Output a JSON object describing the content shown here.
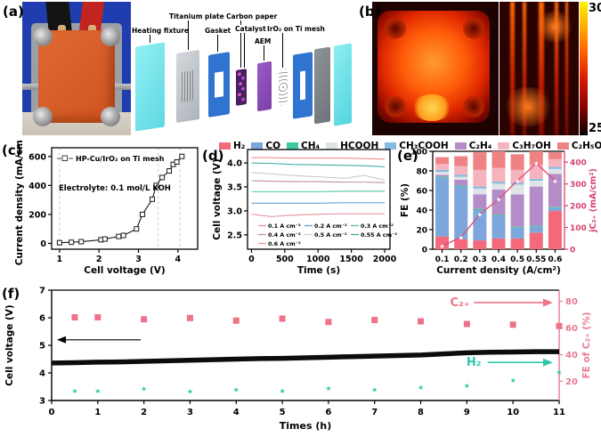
{
  "panels": {
    "a": {
      "label": "(a)",
      "components": [
        "Heating fixture",
        "Titanium plate",
        "Gasket",
        "Carbon paper",
        "Catalyst",
        "AEM",
        "IrO₂ on Ti mesh"
      ]
    },
    "b": {
      "label": "(b)",
      "colorbar_max": "30",
      "colorbar_min": "25"
    },
    "c": {
      "label": "(c)"
    },
    "d": {
      "label": "(d)"
    },
    "e": {
      "label": "(e)"
    },
    "f": {
      "label": "(f)"
    }
  },
  "chart_data": [
    {
      "panel": "c",
      "type": "scatter",
      "series_name": "HP-Cu/IrO₂ on Ti mesh",
      "annotation": "Electrolyte: 0.1 mol/L KOH",
      "xlabel": "Cell voltage (V)",
      "ylabel": "Current density (mA/cm²)",
      "xlim": [
        0.8,
        4.5
      ],
      "ylim": [
        -40,
        660
      ],
      "xticks": [
        1,
        2,
        3,
        4
      ],
      "yticks": [
        0,
        200,
        400,
        600
      ],
      "dashed_x": [
        1,
        3.5,
        4.05
      ],
      "x": [
        1.0,
        1.3,
        1.55,
        2.05,
        2.15,
        2.5,
        2.62,
        2.95,
        3.1,
        3.35,
        3.45,
        3.6,
        3.78,
        3.88,
        3.97,
        4.1
      ],
      "y": [
        5,
        8,
        12,
        25,
        30,
        48,
        55,
        100,
        200,
        305,
        400,
        455,
        500,
        545,
        562,
        600
      ]
    },
    {
      "panel": "d",
      "type": "line",
      "xlabel": "Time (s)",
      "ylabel": "Cell voltage (V)",
      "xlim": [
        -60,
        2080
      ],
      "ylim": [
        2.2,
        4.28
      ],
      "xticks": [
        0,
        500,
        1000,
        1500,
        2000
      ],
      "yticks": [
        2.5,
        3.0,
        3.5,
        4.0
      ],
      "x": [
        0,
        300,
        600,
        1000,
        1400,
        1700,
        2000
      ],
      "series": [
        {
          "name": "0.1 A cm⁻²",
          "color": "#e8929e",
          "y": [
            2.93,
            2.88,
            2.91,
            2.93,
            2.94,
            2.94,
            2.94
          ]
        },
        {
          "name": "0.2 A cm⁻²",
          "color": "#6b9fc8",
          "y": [
            3.16,
            3.16,
            3.16,
            3.16,
            3.17,
            3.17,
            3.17
          ]
        },
        {
          "name": "0.3 A cm⁻²",
          "color": "#52c3ab",
          "y": [
            3.4,
            3.4,
            3.4,
            3.4,
            3.41,
            3.41,
            3.41
          ]
        },
        {
          "name": "0.4 A cm⁻²",
          "color": "#c38d9e",
          "y": [
            3.63,
            3.62,
            3.61,
            3.61,
            3.6,
            3.6,
            3.59
          ]
        },
        {
          "name": "0.5 A cm⁻²",
          "color": "#c9c9d6",
          "y": [
            3.8,
            3.77,
            3.74,
            3.71,
            3.68,
            3.74,
            3.64
          ]
        },
        {
          "name": "0.55 A cm⁻²",
          "color": "#3fae9f",
          "y": [
            4.0,
            3.99,
            3.97,
            3.96,
            3.95,
            3.94,
            3.92
          ]
        },
        {
          "name": "0.6 A cm⁻²",
          "color": "#ef8e8e",
          "y": [
            4.11,
            4.11,
            4.1,
            4.1,
            4.1,
            4.09,
            4.08
          ]
        }
      ]
    },
    {
      "panel": "e",
      "type": "stacked-bar-line",
      "xlabel": "Current density (A/cm²)",
      "ylabel": "FE (%)",
      "y2label": "jC₂₊ (mA/cm²)",
      "categories": [
        "0.1",
        "0.2",
        "0.3",
        "0.4",
        "0.5",
        "0.55",
        "0.6"
      ],
      "ylim": [
        0,
        100
      ],
      "yticks": [
        0,
        20,
        40,
        60,
        80,
        100
      ],
      "y2lim": [
        0,
        450
      ],
      "y2ticks": [
        0,
        100,
        200,
        300,
        400
      ],
      "legend_order": [
        "H₂",
        "CO",
        "CH₄",
        "HCOOH",
        "CH₃COOH",
        "C₂H₄",
        "C₃H₇OH",
        "C₂H₅OH"
      ],
      "series": [
        {
          "name": "H₂",
          "color": "#f4697c",
          "values": [
            13,
            10,
            9,
            11,
            11,
            17,
            39
          ]
        },
        {
          "name": "CO",
          "color": "#7da7dc",
          "values": [
            60,
            54,
            31,
            23,
            11,
            6,
            3
          ]
        },
        {
          "name": "CH₄",
          "color": "#3ec8a0",
          "values": [
            1,
            1,
            1,
            1,
            1,
            1,
            1
          ]
        },
        {
          "name": "C₂H₄",
          "color": "#b48cc8",
          "values": [
            2,
            6,
            15,
            26,
            33,
            40,
            34
          ]
        },
        {
          "name": "HCOOH",
          "color": "#dfe4e8",
          "values": [
            3,
            3,
            6,
            6,
            10,
            6,
            5
          ]
        },
        {
          "name": "CH₃COOH",
          "color": "#85bbdf",
          "values": [
            2,
            2,
            2,
            2,
            2,
            2,
            2
          ]
        },
        {
          "name": "C₃H₇OH",
          "color": "#f5b3bd",
          "values": [
            6,
            9,
            17,
            14,
            13,
            14,
            8
          ]
        },
        {
          "name": "C₂H₅OH",
          "color": "#ef8383",
          "values": [
            7,
            10,
            18,
            17,
            16,
            14,
            7
          ]
        }
      ],
      "line": {
        "name": "jC₂₊",
        "color": "#e0507a",
        "values": [
          15,
          55,
          160,
          230,
          315,
          395,
          315
        ]
      }
    },
    {
      "panel": "f",
      "type": "stability",
      "xlabel": "Times (h)",
      "ylabel": "Cell voltage (V)",
      "y2label": "FE of C₂₊ (%)",
      "xlim": [
        0,
        11
      ],
      "xticks": [
        0,
        1,
        2,
        3,
        4,
        5,
        6,
        7,
        8,
        9,
        10,
        11
      ],
      "ylim": [
        3,
        7
      ],
      "yticks": [
        3,
        4,
        5,
        6,
        7
      ],
      "y2lim": [
        5.6,
        88.4
      ],
      "y2ticks": [
        20,
        40,
        60,
        80
      ],
      "voltage": {
        "color": "#0c0c0c",
        "x": [
          0,
          0.5,
          1,
          1.5,
          2,
          2.5,
          3,
          3.5,
          4,
          4.5,
          5,
          5.5,
          6,
          6.5,
          7,
          7.5,
          8,
          8.5,
          9,
          9.5,
          10,
          10.5,
          11
        ],
        "y": [
          4.36,
          4.37,
          4.39,
          4.4,
          4.42,
          4.44,
          4.46,
          4.48,
          4.5,
          4.52,
          4.53,
          4.55,
          4.57,
          4.59,
          4.61,
          4.63,
          4.65,
          4.69,
          4.73,
          4.75,
          4.76,
          4.77,
          4.77
        ]
      },
      "c2": {
        "label": "C₂₊",
        "color": "#ee7288",
        "x": [
          0.5,
          1,
          2,
          3,
          4,
          5,
          6,
          7,
          8,
          9,
          10,
          11
        ],
        "y": [
          68,
          68,
          66.5,
          67.5,
          65.5,
          67,
          64.5,
          66,
          65,
          63,
          62.5,
          61.5
        ]
      },
      "h2": {
        "label": "H₂",
        "color": "#2fc7ab",
        "x": [
          0.5,
          1,
          2,
          3,
          4,
          5,
          6,
          7,
          8,
          9,
          10,
          11
        ],
        "y": [
          13,
          13,
          14.5,
          12.5,
          14,
          13,
          15,
          14,
          15.5,
          17,
          21,
          27
        ]
      }
    }
  ]
}
